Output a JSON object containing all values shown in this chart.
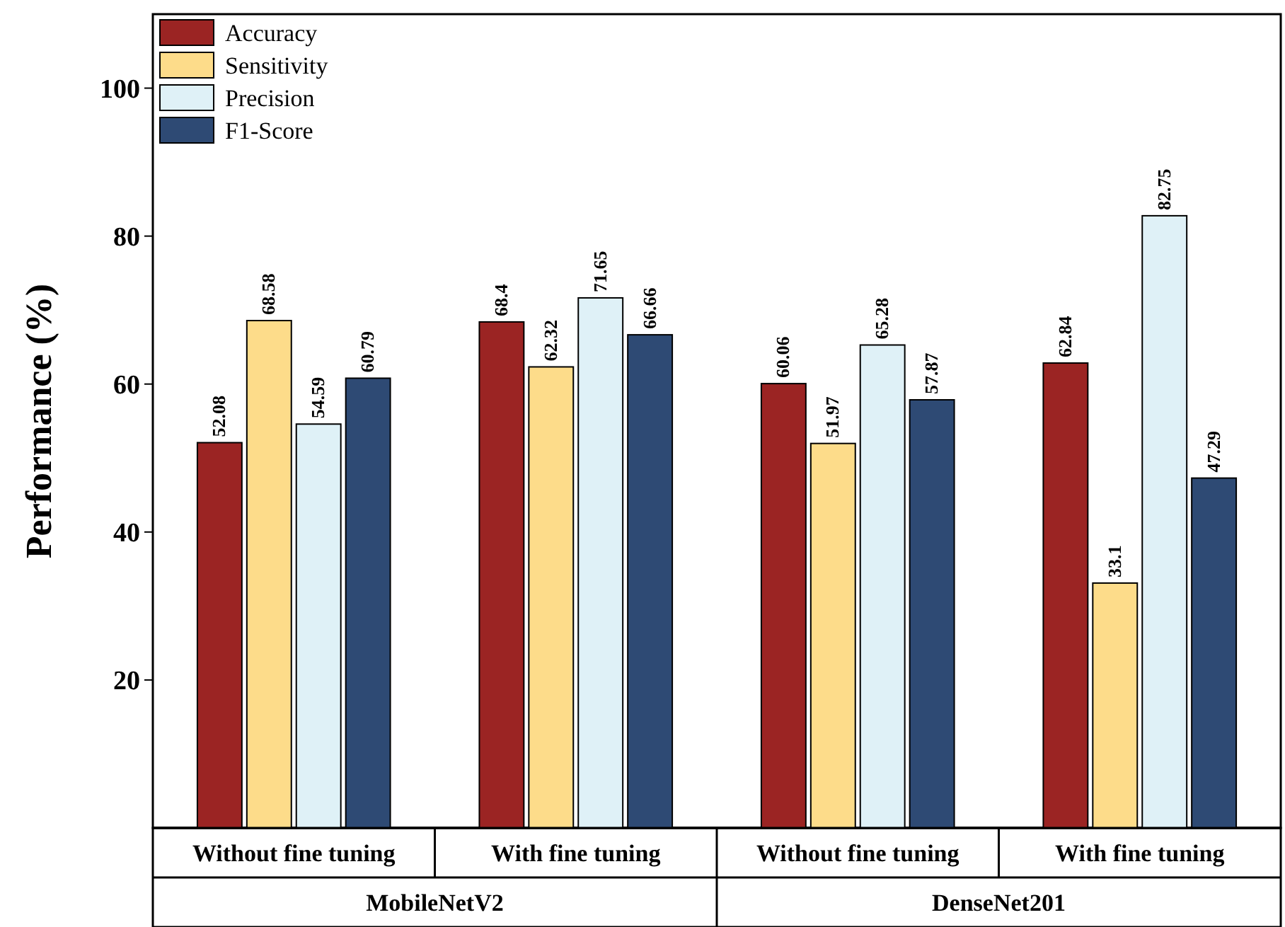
{
  "chart_data": {
    "type": "bar",
    "ylabel": "Performance (%)",
    "categories": [
      "Without fine tuning",
      "With fine tuning",
      "Without fine tuning",
      "With fine tuning"
    ],
    "annotations": [
      "MobileNetV2",
      "DenseNet201"
    ],
    "series": [
      {
        "name": "Accuracy",
        "color": "#9b2423",
        "values": [
          52.08,
          68.4,
          60.06,
          62.84
        ]
      },
      {
        "name": "Sensitivity",
        "color": "#fddc8a",
        "values": [
          68.58,
          62.32,
          51.97,
          33.1
        ]
      },
      {
        "name": "Precision",
        "color": "#dff1f7",
        "values": [
          54.59,
          71.65,
          65.28,
          82.75
        ]
      },
      {
        "name": "F1-Score",
        "color": "#2e4a74",
        "values": [
          60.79,
          66.66,
          57.87,
          47.29
        ]
      }
    ],
    "ylim": [
      0,
      110
    ],
    "yticks": [
      20,
      40,
      60,
      80,
      100
    ],
    "grid": false,
    "legend": "top left",
    "data_labels": true
  }
}
